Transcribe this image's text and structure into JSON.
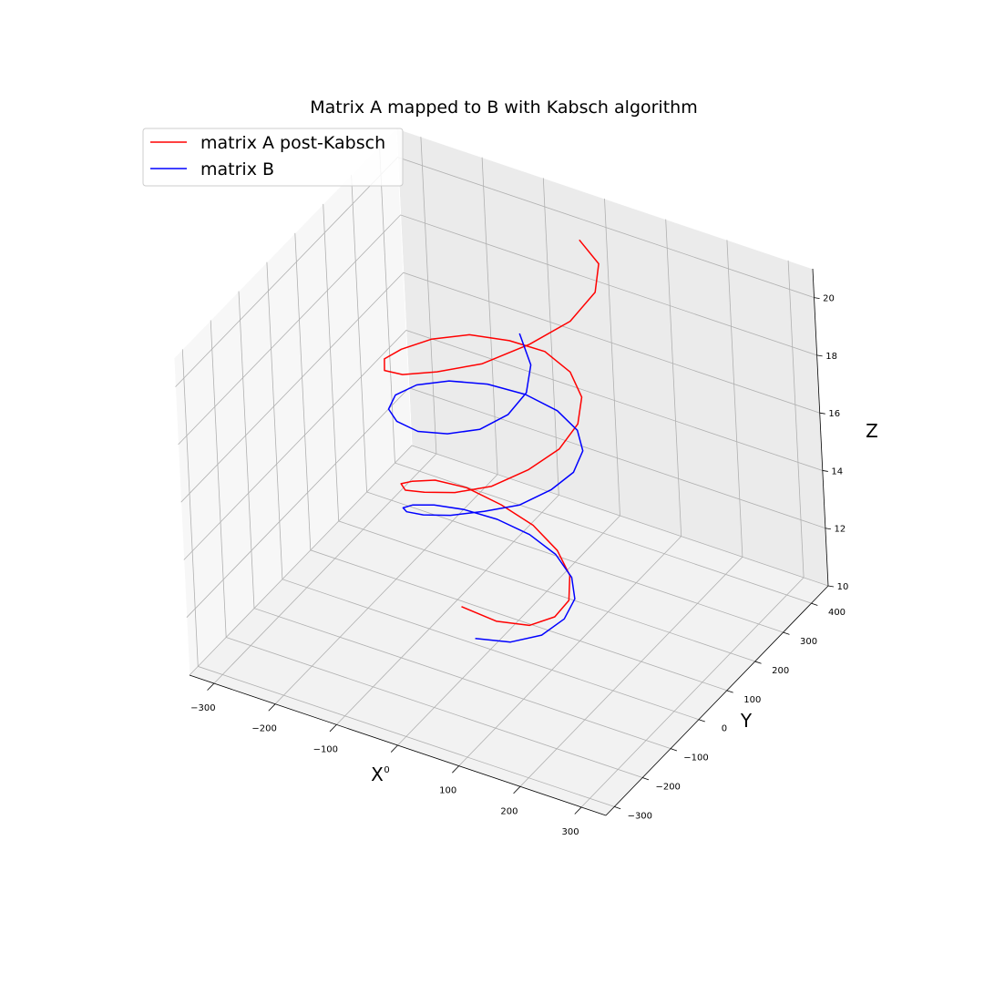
{
  "chart_data": {
    "type": "line",
    "projection": "3d",
    "title": "Matrix A mapped to B with Kabsch algorithm",
    "xlabel": "X",
    "ylabel": "Y",
    "zlabel": "Z",
    "xlim": [
      -340,
      340
    ],
    "ylim": [
      -330,
      460
    ],
    "zlim": [
      10,
      21
    ],
    "xticks": [
      -300,
      -200,
      -100,
      0,
      100,
      200,
      300
    ],
    "xtick_labels": [
      "−300",
      "−200",
      "−100",
      "0",
      "100",
      "200",
      "300"
    ],
    "yticks": [
      -300,
      -200,
      -100,
      0,
      100,
      200,
      300,
      400
    ],
    "ytick_labels": [
      "−300",
      "−200",
      "−100",
      "0",
      "100",
      "200",
      "300",
      "400"
    ],
    "zticks": [
      10,
      12,
      14,
      16,
      18,
      20
    ],
    "ztick_labels": [
      "10",
      "12",
      "14",
      "16",
      "18",
      "20"
    ],
    "grid": true,
    "legend_position": "top-left",
    "series": [
      {
        "name": "matrix A post-Kabsch",
        "color": "#ff0000",
        "x": [
          14.2,
          64.3,
          102.2,
          123.3,
          124.8,
          106.9,
          72.7,
          27.1,
          -22.2,
          -67.0,
          -100.4,
          -116.7,
          -112.8,
          -88.9,
          -48.7,
          0.0,
          48.7,
          88.9,
          112.8,
          116.7,
          100.4,
          67.0,
          22.2,
          -27.1,
          -72.7,
          -106.9,
          -124.8,
          -123.3,
          -102.2,
          -64.3,
          -14.2,
          39.0,
          85.0,
          114.7,
          121.6,
          103.0,
          61.5
        ],
        "y": [
          -120.4,
          -105.7,
          -72.9,
          -28.7,
          18.9,
          62.4,
          94.2,
          109.1,
          104.9,
          82.3,
          44.8,
          -0.6,
          -45.6,
          -80.8,
          -98.8,
          -95.0,
          -68.5,
          -22.5,
          35.4,
          94.8,
          145.7,
          178.8,
          187.7,
          170.1,
          128.4,
          69.0,
          2.0,
          -60.1,
          -104.5,
          -121.5,
          -106.4,
          -60.4,
          9.4,
          89.8,
          165.0,
          219.8,
          242.5
        ],
        "z": [
          12.8,
          12.5,
          12.3,
          12.3,
          12.4,
          12.7,
          13.0,
          13.4,
          13.8,
          14.3,
          14.7,
          15.0,
          15.4,
          15.7,
          16.1,
          16.4,
          16.7,
          17.1,
          17.4,
          17.7,
          18.0,
          18.3,
          18.6,
          18.8,
          19.1,
          19.3,
          19.5,
          19.8,
          20.0,
          20.3,
          20.6,
          20.8,
          21.1,
          21.3,
          21.6,
          21.9,
          22.2
        ]
      },
      {
        "name": "matrix B",
        "color": "#0000ff",
        "x": [
          36.8,
          84.4,
          118.1,
          133.9,
          130.2,
          108.1,
          71.6,
          26.6,
          -20.4,
          -62.5,
          -93.6,
          -109.1,
          -106.8,
          -86.8,
          -51.9,
          -7.1,
          40.5,
          83.8,
          115.3,
          129.2,
          122.4,
          94.8,
          50.3,
          -4.5,
          -60.1,
          -107.6,
          -139.1,
          -149.6,
          -137.6,
          -105.8,
          -60.5,
          -10.5,
          34.8,
          66.4,
          77.4,
          64.2,
          27.3
        ],
        "y": [
          -124.9,
          -103.2,
          -65.4,
          -18.4,
          28.2,
          66.3,
          90.1,
          96.5,
          85.7,
          60.0,
          23.7,
          -17.0,
          -54.9,
          -84.0,
          -99.7,
          -99.1,
          -81.4,
          -48.4,
          -3.8,
          46.5,
          95.7,
          136.6,
          162.7,
          169.6,
          156.0,
          123.4,
          77.1,
          24.9,
          -24.8,
          -63.9,
          -86.4,
          -88.9,
          -71.4,
          -37.8,
          5.9,
          52.4,
          94.6
        ],
        "z": [
          11.9,
          11.9,
          12.0,
          12.2,
          12.4,
          12.6,
          12.9,
          13.2,
          13.5,
          13.8,
          14.1,
          14.4,
          14.7,
          15.0,
          15.3,
          15.6,
          15.9,
          16.1,
          16.4,
          16.6,
          16.8,
          16.9,
          17.0,
          17.1,
          17.2,
          17.3,
          17.4,
          17.5,
          17.6,
          17.8,
          18.0,
          18.3,
          18.6,
          19.0,
          19.4,
          19.8,
          20.2
        ]
      }
    ]
  }
}
